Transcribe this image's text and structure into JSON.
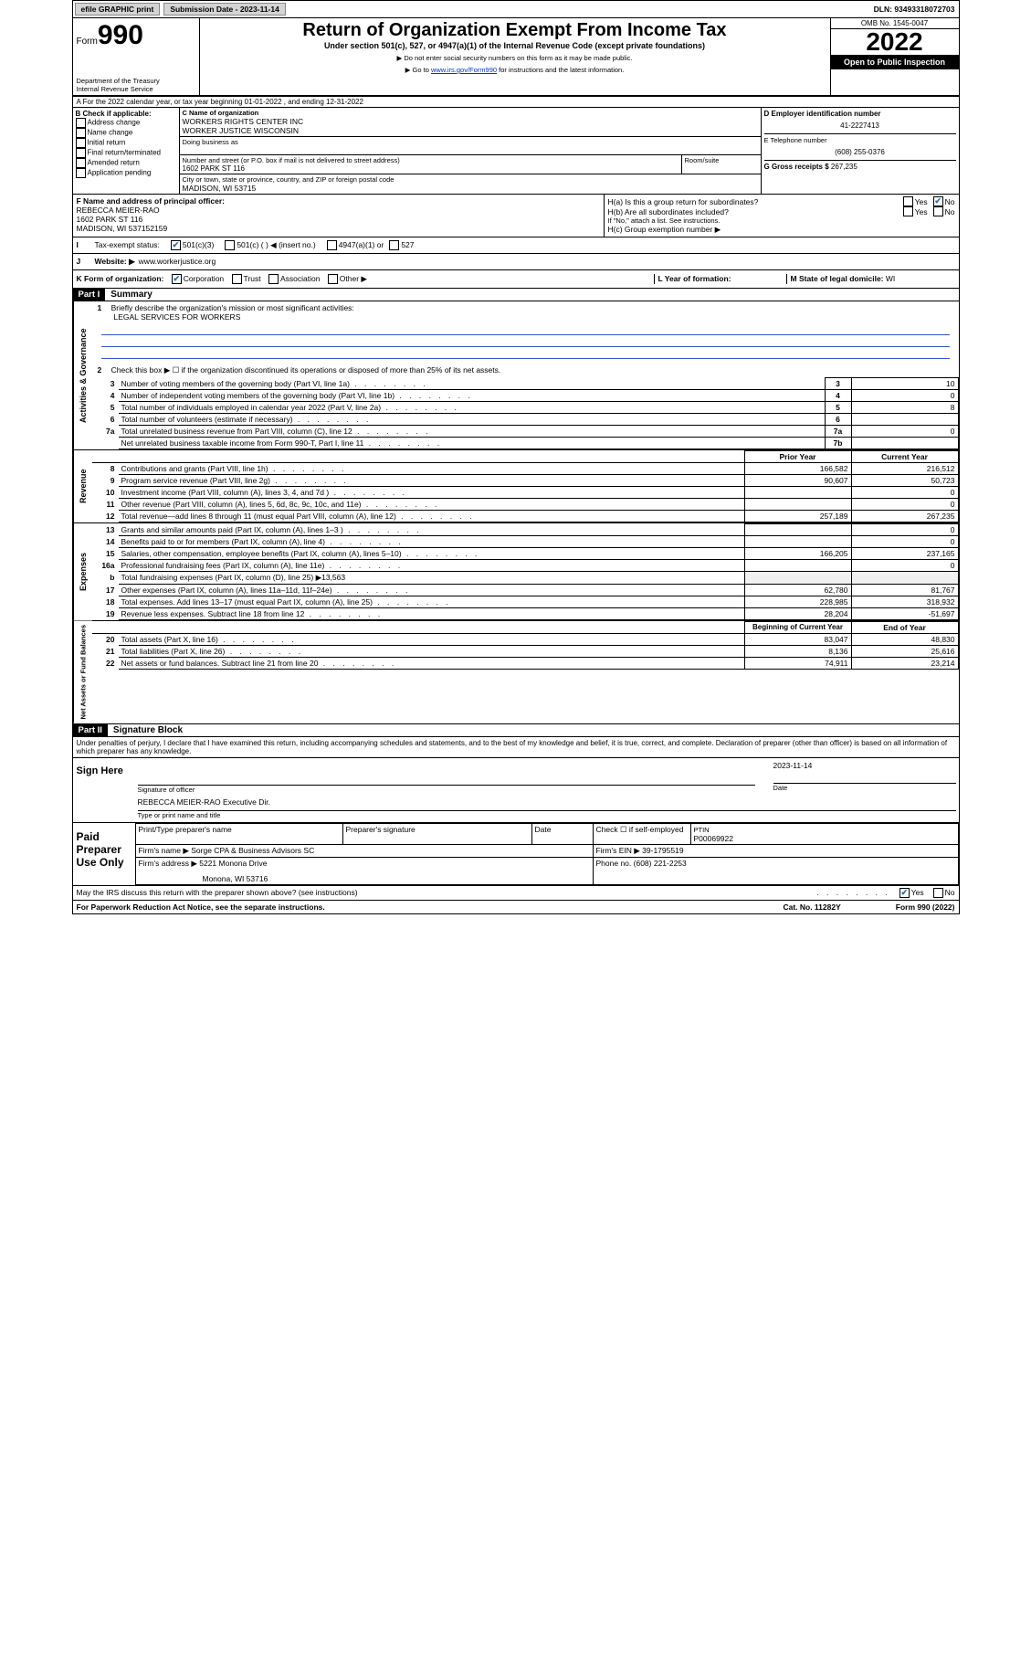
{
  "colors": {
    "link": "#0033cc",
    "check": "#2a6db0",
    "black": "#000000",
    "white": "#ffffff",
    "btn_bg": "#d4d4d4"
  },
  "topbar": {
    "efile": "efile GRAPHIC print",
    "submission_label": "Submission Date - 2023-11-14",
    "dln_label": "DLN: 93493318072703"
  },
  "header": {
    "form_prefix": "Form",
    "form_no": "990",
    "dept": "Department of the Treasury",
    "irs": "Internal Revenue Service",
    "title": "Return of Organization Exempt From Income Tax",
    "sub1": "Under section 501(c), 527, or 4947(a)(1) of the Internal Revenue Code (except private foundations)",
    "sub2": "▶ Do not enter social security numbers on this form as it may be made public.",
    "sub3_pre": "▶ Go to ",
    "sub3_link": "www.irs.gov/Form990",
    "sub3_post": " for instructions and the latest information.",
    "omb": "OMB No. 1545-0047",
    "year": "2022",
    "open": "Open to Public Inspection"
  },
  "section_a": "A For the 2022 calendar year, or tax year beginning 01-01-2022    , and ending 12-31-2022",
  "block_b": {
    "label": "B Check if applicable:",
    "items": [
      "Address change",
      "Name change",
      "Initial return",
      "Final return/terminated",
      "Amended return",
      "Application pending"
    ]
  },
  "block_c": {
    "label": "C Name of organization",
    "name1": "WORKERS RIGHTS CENTER INC",
    "name2": "WORKER JUSTICE WISCONSIN",
    "dba": "Doing business as",
    "addr_label": "Number and street (or P.O. box if mail is not delivered to street address)",
    "room_label": "Room/suite",
    "addr": "1602 PARK ST 116",
    "city_label": "City or town, state or province, country, and ZIP or foreign postal code",
    "city": "MADISON, WI  53715"
  },
  "block_d": {
    "label": "D Employer identification number",
    "ein": "41-2227413",
    "tel_label": "E Telephone number",
    "tel": "(608) 255-0376",
    "gross_label": "G Gross receipts $",
    "gross": "267,235"
  },
  "block_f": {
    "label": "F  Name and address of principal officer:",
    "name": "REBECCA MEIER-RAO",
    "addr": "1602 PARK ST 116",
    "city": "MADISON, WI  537152159"
  },
  "block_h": {
    "ha": "H(a)  Is this a group return for subordinates?",
    "hb": "H(b)  Are all subordinates included?",
    "hb_note": "If \"No,\" attach a list. See instructions.",
    "hc": "H(c)  Group exemption number ▶",
    "yes": "Yes",
    "no": "No"
  },
  "row_i": {
    "label": "Tax-exempt status:",
    "opt1": "501(c)(3)",
    "opt2": "501(c) (  ) ◀ (insert no.)",
    "opt3": "4947(a)(1) or",
    "opt4": "527"
  },
  "row_j": {
    "label": "Website: ▶",
    "value": "www.workerjustice.org"
  },
  "row_k": {
    "label": "K Form of organization:",
    "opts": [
      "Corporation",
      "Trust",
      "Association",
      "Other ▶"
    ]
  },
  "row_l": {
    "label": "L Year of formation:"
  },
  "row_m": {
    "label": "M State of legal domicile:",
    "value": "WI"
  },
  "part1": {
    "header": "Part I",
    "title": "Summary",
    "q1": "Briefly describe the organization's mission or most significant activities:",
    "q1_ans": "LEGAL SERVICES FOR WORKERS",
    "q2": "Check this box ▶ ☐  if the organization discontinued its operations or disposed of more than 25% of its net assets.",
    "side1": "Activities & Governance",
    "side2": "Revenue",
    "side3": "Expenses",
    "side4": "Net Assets or Fund Balances",
    "rows_gov": [
      {
        "n": "3",
        "desc": "Number of voting members of the governing body (Part VI, line 1a)",
        "box": "3",
        "val": "10"
      },
      {
        "n": "4",
        "desc": "Number of independent voting members of the governing body (Part VI, line 1b)",
        "box": "4",
        "val": "0"
      },
      {
        "n": "5",
        "desc": "Total number of individuals employed in calendar year 2022 (Part V, line 2a)",
        "box": "5",
        "val": "8"
      },
      {
        "n": "6",
        "desc": "Total number of volunteers (estimate if necessary)",
        "box": "6",
        "val": ""
      },
      {
        "n": "7a",
        "desc": "Total unrelated business revenue from Part VIII, column (C), line 12",
        "box": "7a",
        "val": "0"
      },
      {
        "n": "",
        "desc": "Net unrelated business taxable income from Form 990-T, Part I, line 11",
        "box": "7b",
        "val": ""
      }
    ],
    "col_prior": "Prior Year",
    "col_current": "Current Year",
    "rows_rev": [
      {
        "n": "8",
        "desc": "Contributions and grants (Part VIII, line 1h)",
        "p": "166,582",
        "c": "216,512"
      },
      {
        "n": "9",
        "desc": "Program service revenue (Part VIII, line 2g)",
        "p": "90,607",
        "c": "50,723"
      },
      {
        "n": "10",
        "desc": "Investment income (Part VIII, column (A), lines 3, 4, and 7d )",
        "p": "",
        "c": "0"
      },
      {
        "n": "11",
        "desc": "Other revenue (Part VIII, column (A), lines 5, 6d, 8c, 9c, 10c, and 11e)",
        "p": "",
        "c": "0"
      },
      {
        "n": "12",
        "desc": "Total revenue—add lines 8 through 11 (must equal Part VIII, column (A), line 12)",
        "p": "257,189",
        "c": "267,235"
      }
    ],
    "rows_exp": [
      {
        "n": "13",
        "desc": "Grants and similar amounts paid (Part IX, column (A), lines 1–3 )",
        "p": "",
        "c": "0"
      },
      {
        "n": "14",
        "desc": "Benefits paid to or for members (Part IX, column (A), line 4)",
        "p": "",
        "c": "0"
      },
      {
        "n": "15",
        "desc": "Salaries, other compensation, employee benefits (Part IX, column (A), lines 5–10)",
        "p": "166,205",
        "c": "237,165"
      },
      {
        "n": "16a",
        "desc": "Professional fundraising fees (Part IX, column (A), line 11e)",
        "p": "",
        "c": "0"
      },
      {
        "n": "b",
        "desc": "Total fundraising expenses (Part IX, column (D), line 25) ▶13,563",
        "p": "",
        "c": "",
        "noval": true
      },
      {
        "n": "17",
        "desc": "Other expenses (Part IX, column (A), lines 11a–11d, 11f–24e)",
        "p": "62,780",
        "c": "81,767"
      },
      {
        "n": "18",
        "desc": "Total expenses. Add lines 13–17 (must equal Part IX, column (A), line 25)",
        "p": "228,985",
        "c": "318,932"
      },
      {
        "n": "19",
        "desc": "Revenue less expenses. Subtract line 18 from line 12",
        "p": "28,204",
        "c": "-51,697"
      }
    ],
    "col_begin": "Beginning of Current Year",
    "col_end": "End of Year",
    "rows_net": [
      {
        "n": "20",
        "desc": "Total assets (Part X, line 16)",
        "p": "83,047",
        "c": "48,830"
      },
      {
        "n": "21",
        "desc": "Total liabilities (Part X, line 26)",
        "p": "8,136",
        "c": "25,616"
      },
      {
        "n": "22",
        "desc": "Net assets or fund balances. Subtract line 21 from line 20",
        "p": "74,911",
        "c": "23,214"
      }
    ]
  },
  "part2": {
    "header": "Part II",
    "title": "Signature Block",
    "penalty": "Under penalties of perjury, I declare that I have examined this return, including accompanying schedules and statements, and to the best of my knowledge and belief, it is true, correct, and complete. Declaration of preparer (other than officer) is based on all information of which preparer has any knowledge."
  },
  "sign": {
    "label": "Sign Here",
    "sig_officer": "Signature of officer",
    "date_label": "Date",
    "date": "2023-11-14",
    "name": "REBECCA MEIER-RAO  Executive Dir.",
    "name_label": "Type or print name and title"
  },
  "paid": {
    "label": "Paid Preparer Use Only",
    "col1": "Print/Type preparer's name",
    "col2": "Preparer's signature",
    "col3": "Date",
    "check_label": "Check ☐ if self-employed",
    "ptin_label": "PTIN",
    "ptin": "P00069922",
    "firm_name_label": "Firm's name   ▶",
    "firm_name": "Sorge CPA & Business Advisors SC",
    "firm_ein_label": "Firm's EIN ▶",
    "firm_ein": "39-1795519",
    "firm_addr_label": "Firm's address ▶",
    "firm_addr1": "5221 Monona Drive",
    "firm_addr2": "Monona, WI  53716",
    "phone_label": "Phone no.",
    "phone": "(608) 221-2253"
  },
  "footer": {
    "discuss": "May the IRS discuss this return with the preparer shown above? (see instructions)",
    "paperwork": "For Paperwork Reduction Act Notice, see the separate instructions.",
    "cat": "Cat. No. 11282Y",
    "form": "Form 990 (2022)",
    "yes": "Yes",
    "no": "No"
  }
}
